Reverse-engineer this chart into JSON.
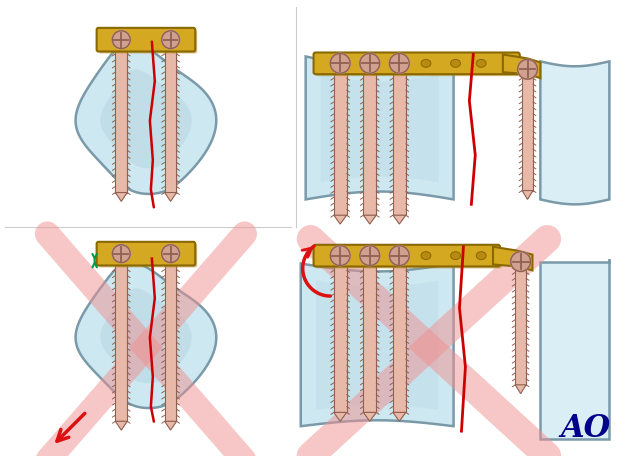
{
  "bg_color": "#ffffff",
  "bone_color": "#cde8f0",
  "bone_color2": "#daeef5",
  "bone_edge_color": "#7a9aaa",
  "bone_dark": "#a8c8d8",
  "plate_color": "#d4a820",
  "plate_edge_color": "#8a6800",
  "plate_dark": "#b88a10",
  "screw_color": "#e8b8a8",
  "screw_edge_color": "#906050",
  "screw_dark": "#c89888",
  "screw_head_color": "#d0a090",
  "red_line_color": "#cc0000",
  "cross_color": "#f09090",
  "cross_alpha": 0.5,
  "arrow_red": "#dd1111",
  "arrow_green": "#009944",
  "ao_color": "#00008b",
  "figsize": [
    6.2,
    4.6
  ],
  "dpi": 100
}
